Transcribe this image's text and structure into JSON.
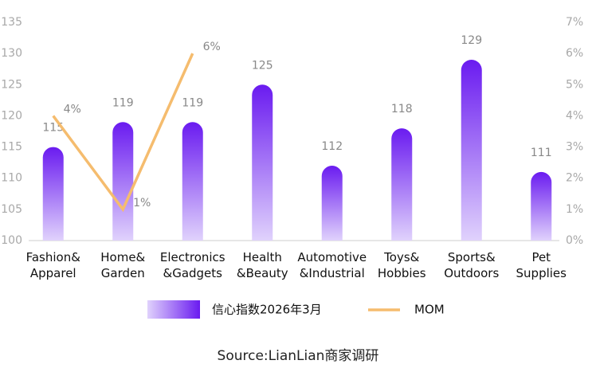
{
  "chart_data": {
    "type": "bar_line",
    "categories": [
      "Fashion&\nApparel",
      "Home&\nGarden",
      "Electronics\n&Gadgets",
      "Health\n&Beauty",
      "Automotive\n&Industrial",
      "Toys&\nHobbies",
      "Sports&\nOutdoors",
      "Pet\nSupplies"
    ],
    "series": [
      {
        "name": "信心指数2026年3月",
        "type": "bar",
        "color": "#6a1bf0",
        "color_light": "#e0d2fc",
        "values": [
          115,
          119,
          119,
          125,
          112,
          118,
          129,
          111
        ]
      },
      {
        "name": "MOM",
        "type": "line",
        "axis": "y2",
        "color": "#f5bc6e",
        "values": [
          4,
          1,
          6,
          null,
          null,
          null,
          null,
          null
        ],
        "value_labels": [
          "4%",
          "1%",
          "6%",
          null,
          null,
          null,
          null,
          null
        ]
      }
    ],
    "ylim": [
      100,
      135
    ],
    "yticks": [
      100,
      105,
      110,
      115,
      120,
      125,
      130,
      135
    ],
    "y2lim": [
      0,
      7
    ],
    "y2ticks": [
      {
        "value": 0,
        "label": "0%"
      },
      {
        "value": 1,
        "label": "1%"
      },
      {
        "value": 2,
        "label": "2%"
      },
      {
        "value": 3,
        "label": "3%"
      },
      {
        "value": 4,
        "label": "4%"
      },
      {
        "value": 5,
        "label": "5%"
      },
      {
        "value": 6,
        "label": "6%"
      },
      {
        "value": 7,
        "label": "7%"
      }
    ],
    "grid": false,
    "legend": "bottom",
    "source": "Source:LianLian商家调研"
  }
}
